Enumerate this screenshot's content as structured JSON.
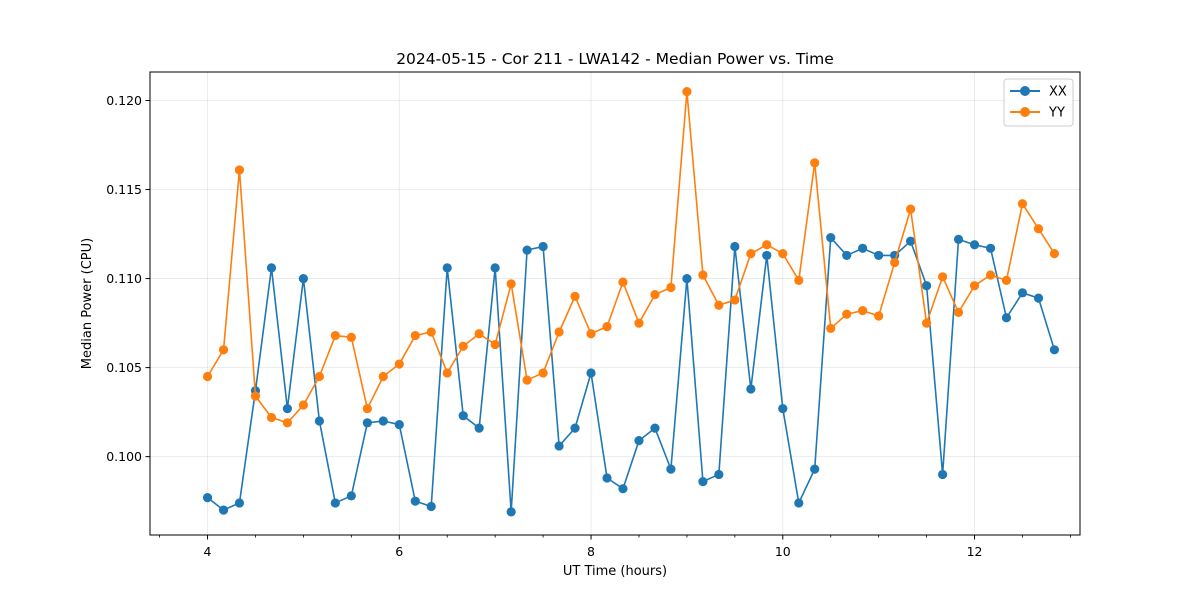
{
  "chart_data": {
    "type": "line",
    "title": "2024-05-15 - Cor 211 - LWA142 - Median Power vs. Time",
    "xlabel": "UT Time (hours)",
    "ylabel": "Median Power (CPU)",
    "xlim": [
      3.4,
      13.1
    ],
    "ylim": [
      0.0956,
      0.1216
    ],
    "xticks": [
      4,
      6,
      8,
      10,
      12
    ],
    "xtick_labels": [
      "4",
      "6",
      "8",
      "10",
      "12"
    ],
    "yticks": [
      0.1,
      0.105,
      0.11,
      0.115,
      0.12
    ],
    "ytick_labels": [
      "0.100",
      "0.105",
      "0.110",
      "0.115",
      "0.120"
    ],
    "grid": true,
    "legend_position": "top-right",
    "x": [
      4.0,
      4.167,
      4.333,
      4.5,
      4.667,
      4.833,
      5.0,
      5.167,
      5.333,
      5.5,
      5.667,
      5.833,
      6.0,
      6.167,
      6.333,
      6.5,
      6.667,
      6.833,
      7.0,
      7.167,
      7.333,
      7.5,
      7.667,
      7.833,
      8.0,
      8.167,
      8.333,
      8.5,
      8.667,
      8.833,
      9.0,
      9.167,
      9.333,
      9.5,
      9.667,
      9.833,
      10.0,
      10.167,
      10.333,
      10.5,
      10.667,
      10.833,
      11.0,
      11.167,
      11.333,
      11.5,
      11.667,
      11.833,
      12.0,
      12.167,
      12.333,
      12.5,
      12.667,
      12.833
    ],
    "series": [
      {
        "name": "XX",
        "color": "#1f77b4",
        "values": [
          0.0977,
          0.097,
          0.0974,
          0.1037,
          0.1106,
          0.1027,
          0.11,
          0.102,
          0.0974,
          0.0978,
          0.1019,
          0.102,
          0.1018,
          0.0975,
          0.0972,
          0.1106,
          0.1023,
          0.1016,
          0.1106,
          0.0969,
          0.1116,
          0.1118,
          0.1006,
          0.1016,
          0.1047,
          0.0988,
          0.0982,
          0.1009,
          0.1016,
          0.0993,
          0.11,
          0.0986,
          0.099,
          0.1118,
          0.1038,
          0.1113,
          0.1027,
          0.0974,
          0.0993,
          0.1123,
          0.1113,
          0.1117,
          0.1113,
          0.1113,
          0.1121,
          0.1096,
          0.099,
          0.1122,
          0.1119,
          0.1117,
          0.1078,
          0.1092,
          0.1089,
          0.106
        ]
      },
      {
        "name": "YY",
        "color": "#ff7f0e",
        "values": [
          0.1045,
          0.106,
          0.1161,
          0.1034,
          0.1022,
          0.1019,
          0.1029,
          0.1045,
          0.1068,
          0.1067,
          0.1027,
          0.1045,
          0.1052,
          0.1068,
          0.107,
          0.1047,
          0.1062,
          0.1069,
          0.1063,
          0.1097,
          0.1043,
          0.1047,
          0.107,
          0.109,
          0.1069,
          0.1073,
          0.1098,
          0.1075,
          0.1091,
          0.1095,
          0.1205,
          0.1102,
          0.1085,
          0.1088,
          0.1114,
          0.1119,
          0.1114,
          0.1099,
          0.1165,
          0.1072,
          0.108,
          0.1082,
          0.1079,
          0.1109,
          0.1139,
          0.1075,
          0.1101,
          0.1081,
          0.1096,
          0.1102,
          0.1099,
          0.1142,
          0.1128,
          0.1114
        ]
      }
    ]
  }
}
